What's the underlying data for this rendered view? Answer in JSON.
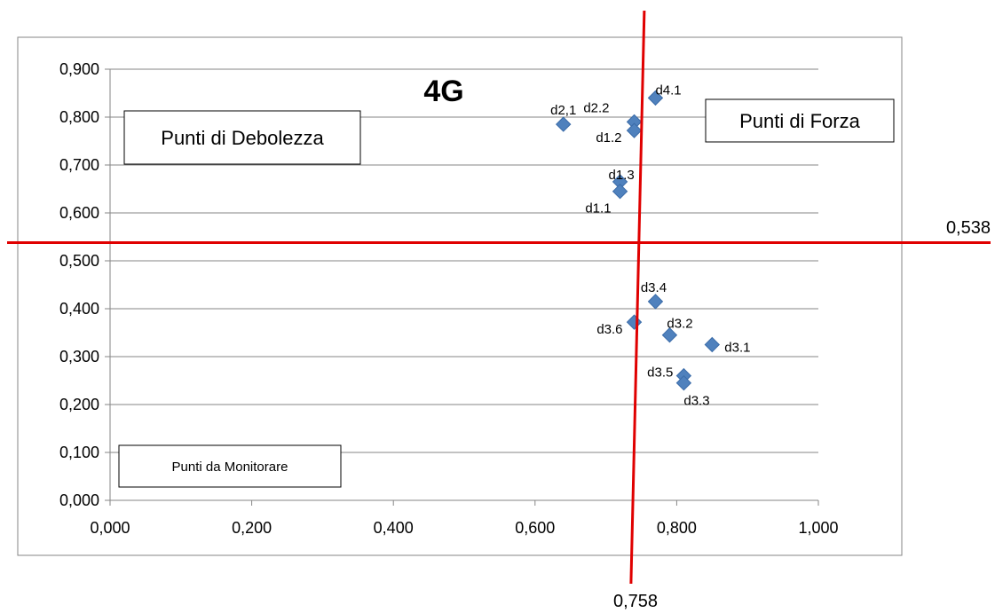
{
  "chart_data": {
    "type": "scatter",
    "title": "4G",
    "xlim": [
      0,
      1
    ],
    "ylim": [
      0,
      0.9
    ],
    "x_ticks": [
      "0,000",
      "0,200",
      "0,400",
      "0,600",
      "0,800",
      "1,000"
    ],
    "y_ticks": [
      "0,000",
      "0,100",
      "0,200",
      "0,300",
      "0,400",
      "0,500",
      "0,600",
      "0,700",
      "0,800",
      "0,900"
    ],
    "grid": "horizontal",
    "marker": "diamond",
    "marker_color": "#4F81BD",
    "reference_line_color": "#E00000",
    "reference_lines": {
      "vertical": {
        "x": 0.758,
        "label": "0,758"
      },
      "horizontal": {
        "y": 0.538,
        "label": "0,538"
      }
    },
    "quadrant_labels": {
      "top_left": "Punti di Debolezza",
      "top_right": "Punti di Forza",
      "bottom_left": "Punti da Monitorare"
    },
    "points": [
      {
        "label": "d2,1",
        "x": 0.64,
        "y": 0.785
      },
      {
        "label": "d2.2",
        "x": 0.74,
        "y": 0.79
      },
      {
        "label": "d1.2",
        "x": 0.74,
        "y": 0.772
      },
      {
        "label": "d4.1",
        "x": 0.77,
        "y": 0.84
      },
      {
        "label": "d1.3",
        "x": 0.72,
        "y": 0.665
      },
      {
        "label": "d1.1",
        "x": 0.72,
        "y": 0.645
      },
      {
        "label": "d3.4",
        "x": 0.77,
        "y": 0.415
      },
      {
        "label": "d3.6",
        "x": 0.74,
        "y": 0.372
      },
      {
        "label": "d3.2",
        "x": 0.79,
        "y": 0.345
      },
      {
        "label": "d3.1",
        "x": 0.85,
        "y": 0.325
      },
      {
        "label": "d3.5",
        "x": 0.81,
        "y": 0.26
      },
      {
        "label": "d3.3",
        "x": 0.81,
        "y": 0.245
      }
    ]
  }
}
